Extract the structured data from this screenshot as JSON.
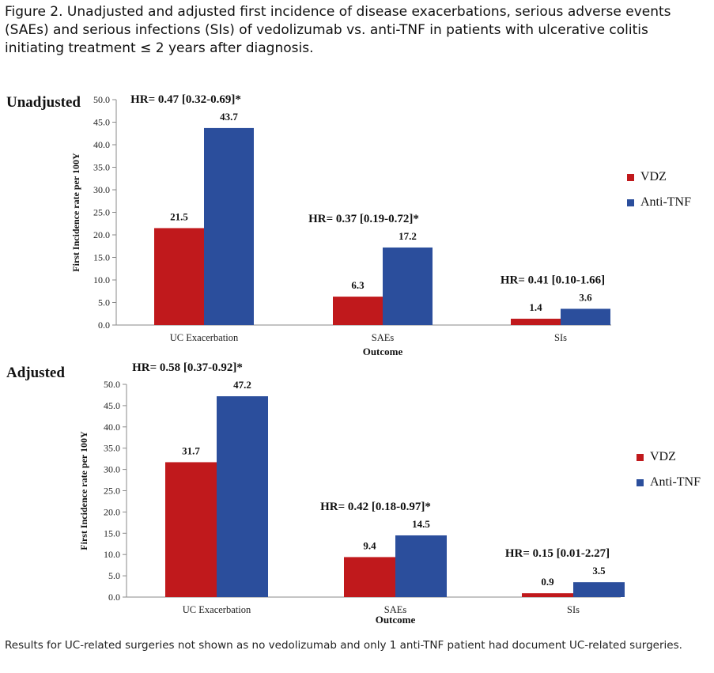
{
  "caption": "Figure 2. Unadjusted and adjusted first incidence of disease exacerbations, serious adverse events (SAEs) and serious infections (SIs) of vedolizumab vs. anti-TNF in patients with ulcerative colitis initiating treatment ≤ 2 years after diagnosis.",
  "footnote": "Results for UC-related surgeries not shown as no vedolizumab and only 1 anti-TNF patient had document UC-related surgeries.",
  "colors": {
    "vdz": "#c0191c",
    "anti_tnf": "#2b4e9c"
  },
  "chart_data": [
    {
      "type": "bar",
      "title": "Unadjusted",
      "categories": [
        "UC Exacerbation",
        "SAEs",
        "SIs"
      ],
      "series": [
        {
          "name": "VDZ",
          "values": [
            21.5,
            6.3,
            1.4
          ]
        },
        {
          "name": "Anti-TNF",
          "values": [
            43.7,
            17.2,
            3.6
          ]
        }
      ],
      "value_labels": [
        [
          "21.5",
          "6.3",
          "1.4"
        ],
        [
          "43.7",
          "17.2",
          "3.6"
        ]
      ],
      "annotations": [
        "HR= 0.47 [0.32-0.69]*",
        "HR= 0.37 [0.19-0.72]*",
        "HR= 0.41 [0.10-1.66]"
      ],
      "xlabel": "Outcome",
      "ylabel": "First Incidence rate per 100Y",
      "ylim": [
        0,
        50
      ],
      "yticks": [
        "0.0",
        "5.0",
        "10.0",
        "15.0",
        "20.0",
        "25.0",
        "30.0",
        "35.0",
        "40.0",
        "45.0",
        "50.0"
      ],
      "grid": false,
      "legend": "right"
    },
    {
      "type": "bar",
      "title": "Adjusted",
      "categories": [
        "UC Exacerbation",
        "SAEs",
        "SIs"
      ],
      "series": [
        {
          "name": "VDZ",
          "values": [
            31.7,
            9.4,
            0.9
          ]
        },
        {
          "name": "Anti-TNF",
          "values": [
            47.2,
            14.5,
            3.5
          ]
        }
      ],
      "value_labels": [
        [
          "31.7",
          "9.4",
          "0.9"
        ],
        [
          "47.2",
          "14.5",
          "3.5"
        ]
      ],
      "annotations": [
        "HR= 0.58 [0.37-0.92]*",
        "HR= 0.42 [0.18-0.97]*",
        "HR= 0.15 [0.01-2.27]"
      ],
      "xlabel": "Outcome",
      "ylabel": "First Incidence rate per 100Y",
      "ylim": [
        0,
        50
      ],
      "yticks": [
        "0.0",
        "5.0",
        "10.0",
        "15.0",
        "20.0",
        "25.0",
        "30.0",
        "35.0",
        "40.0",
        "45.0",
        "50.0"
      ],
      "grid": false,
      "legend": "right"
    }
  ]
}
